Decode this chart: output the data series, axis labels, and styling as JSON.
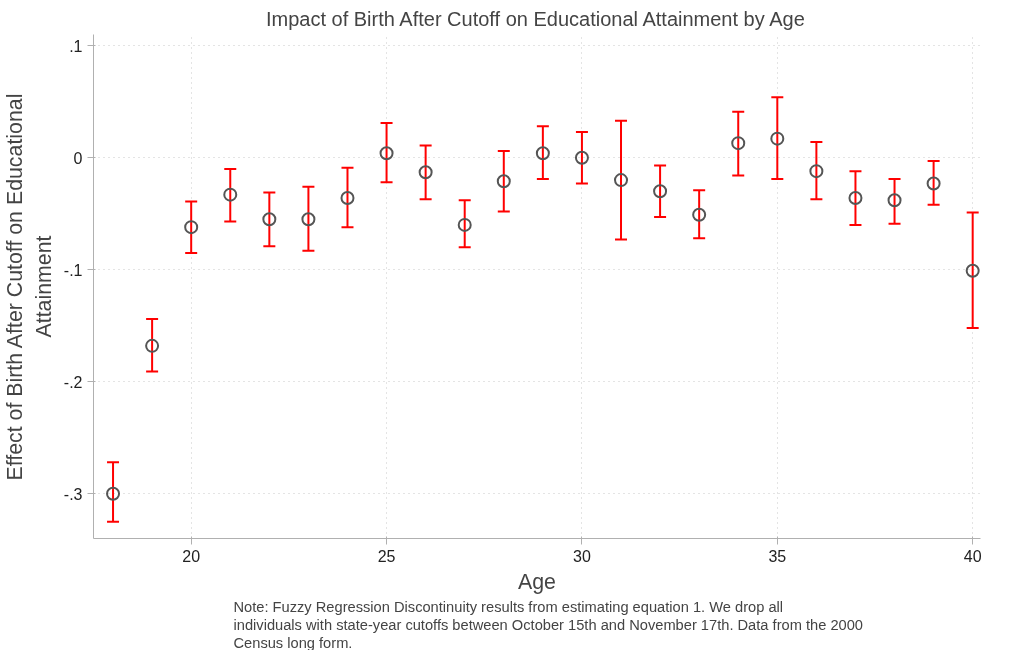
{
  "chart_data": {
    "type": "scatter",
    "title": "Impact of Birth After Cutoff on Educational Attainment by Age",
    "xlabel": "Age",
    "ylabel": "Effect of Birth After Cutoff on Educational Attainment",
    "x": [
      18,
      19,
      20,
      21,
      22,
      23,
      24,
      25,
      26,
      27,
      28,
      29,
      30,
      31,
      32,
      33,
      34,
      35,
      36,
      37,
      38,
      39,
      40
    ],
    "series": [
      {
        "color": "#555555",
        "values": [
          -0.3,
          -0.168,
          -0.062,
          -0.033,
          -0.055,
          -0.055,
          -0.036,
          0.004,
          -0.013,
          -0.06,
          -0.021,
          0.004,
          0.0,
          -0.02,
          -0.03,
          -0.051,
          0.013,
          0.017,
          -0.012,
          -0.036,
          -0.038,
          -0.023,
          -0.101
        ],
        "errors": [
          [
            -0.325,
            -0.272
          ],
          [
            -0.191,
            -0.144
          ],
          [
            -0.085,
            -0.039
          ],
          [
            -0.057,
            -0.01
          ],
          [
            -0.079,
            -0.031
          ],
          [
            -0.083,
            -0.026
          ],
          [
            -0.062,
            -0.009
          ],
          [
            -0.022,
            0.031
          ],
          [
            -0.037,
            0.011
          ],
          [
            -0.08,
            -0.038
          ],
          [
            -0.048,
            0.006
          ],
          [
            -0.019,
            0.028
          ],
          [
            -0.023,
            0.023
          ],
          [
            -0.073,
            0.033
          ],
          [
            -0.053,
            -0.007
          ],
          [
            -0.072,
            -0.029
          ],
          [
            -0.016,
            0.041
          ],
          [
            -0.019,
            0.054
          ],
          [
            -0.037,
            0.014
          ],
          [
            -0.06,
            -0.012
          ],
          [
            -0.059,
            -0.019
          ],
          [
            -0.042,
            -0.003
          ],
          [
            -0.152,
            -0.049
          ]
        ]
      }
    ],
    "xlim": [
      17.5,
      40.2
    ],
    "ylim": [
      -0.34,
      0.11
    ],
    "xticks": [
      20,
      25,
      30,
      35,
      40
    ],
    "yticks": [
      {
        "value": 0.1,
        "label": ".1"
      },
      0,
      {
        "value": -0.1,
        "label": "-.1"
      },
      {
        "value": -0.2,
        "label": "-.2"
      },
      {
        "value": -0.3,
        "label": "-.3"
      }
    ],
    "grid": true,
    "marker": "circle",
    "annotations": [
      "Note: Fuzzy Regression Discontinuity results from estimating equation 1. We drop all",
      "individuals with state-year cutoffs between October 15th and November 17th. Data from the 2000",
      "Census long form."
    ]
  }
}
